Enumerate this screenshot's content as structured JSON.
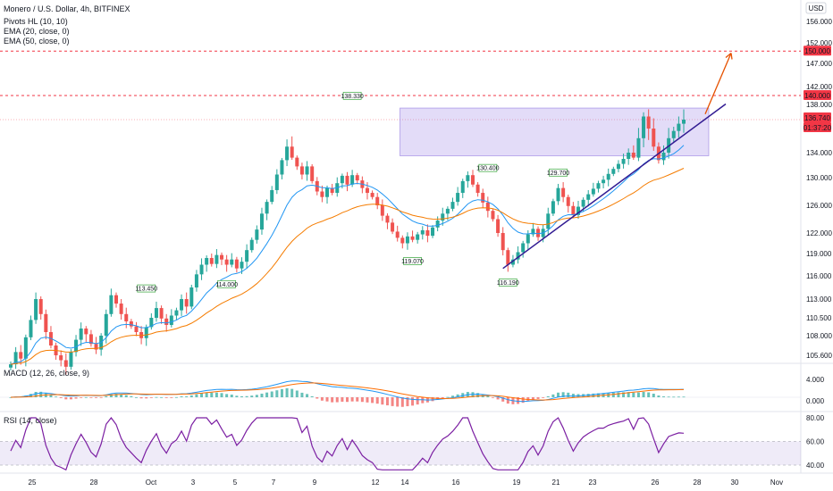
{
  "chart_data": {
    "type": "candlestick",
    "title": "Monero / U.S. Dollar, 4h, BITFINEX",
    "currency_label": "USD",
    "price_axis": {
      "ticks": [
        "156.000",
        "152.000",
        "147.000",
        "142.000",
        "138.000",
        "134.000",
        "130.000",
        "126.000",
        "122.000",
        "119.000",
        "116.000",
        "113.000",
        "110.500",
        "108.000",
        "105.600"
      ]
    },
    "x_axis": {
      "ticks": [
        "25",
        "28",
        "Oct",
        "3",
        "5",
        "7",
        "9",
        "12",
        "14",
        "16",
        "19",
        "21",
        "23",
        "26",
        "28",
        "30",
        "Nov"
      ]
    },
    "price_tags": [
      {
        "text": "150.000",
        "color": "#f23645"
      },
      {
        "text": "140.000",
        "color": "#f23645"
      },
      {
        "text": "136.740",
        "color": "#f23645"
      },
      {
        "text": "01:37:20",
        "color": "#f23645"
      }
    ],
    "indicators": [
      {
        "name": "Pivots HL (10, 10)"
      },
      {
        "name": "EMA (20, close, 0)",
        "color": "#2196f3"
      },
      {
        "name": "EMA (50, close, 0)",
        "color": "#f57c00"
      }
    ],
    "pivot_labels": [
      "113.450",
      "114.000",
      "138.330",
      "130.400",
      "129.700",
      "119.070",
      "116.190"
    ],
    "series_close": [
      104.5,
      106.0,
      105.2,
      107.8,
      110.2,
      113.0,
      111.0,
      108.5,
      106.8,
      105.6,
      105.0,
      104.2,
      106.0,
      107.5,
      109.0,
      108.2,
      107.0,
      106.3,
      108.0,
      111.0,
      113.5,
      112.4,
      111.0,
      110.0,
      109.3,
      108.5,
      107.7,
      109.2,
      110.5,
      111.8,
      110.4,
      109.5,
      110.8,
      111.5,
      113.0,
      112.0,
      114.5,
      116.2,
      117.5,
      118.4,
      117.6,
      118.8,
      118.2,
      117.5,
      118.2,
      117.0,
      117.9,
      119.5,
      121.0,
      122.5,
      124.8,
      126.5,
      128.2,
      130.5,
      132.8,
      134.5,
      133.2,
      131.8,
      130.5,
      131.8,
      129.5,
      128.0,
      127.2,
      128.5,
      127.8,
      129.2,
      130.3,
      129.0,
      130.4,
      129.6,
      128.5,
      127.8,
      127.2,
      126.0,
      124.5,
      123.5,
      122.2,
      121.3,
      120.5,
      121.5,
      121.0,
      121.8,
      122.4,
      121.6,
      122.8,
      123.8,
      124.8,
      125.5,
      126.5,
      127.8,
      129.5,
      130.4,
      129.0,
      127.8,
      126.4,
      125.2,
      124.0,
      122.0,
      119.5,
      117.5,
      118.2,
      119.2,
      120.5,
      121.8,
      122.6,
      121.4,
      122.6,
      124.8,
      126.6,
      128.5,
      127.2,
      125.9,
      124.6,
      125.8,
      126.8,
      127.6,
      128.4,
      129.2,
      129.7,
      130.6,
      131.4,
      132.2,
      133.0,
      134.0,
      133.2,
      135.2,
      137.0,
      136.0,
      134.5,
      132.8,
      134.0,
      135.2,
      135.8,
      136.4,
      136.74
    ],
    "macd": {
      "name": "MACD (12, 26, close, 9)",
      "ticks": [
        "4.000",
        "0.000"
      ]
    },
    "rsi": {
      "name": "RSI (14, close)",
      "ticks": [
        "80.00",
        "60.00",
        "40.00"
      ]
    },
    "annotations": {
      "resistance_zone": [
        133.5,
        137.7
      ],
      "target": 150.0,
      "dashed_level": 140.0
    }
  }
}
